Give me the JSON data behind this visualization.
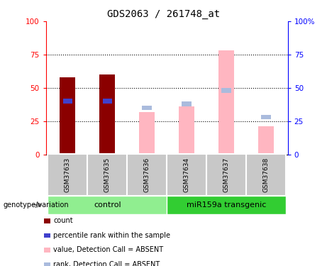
{
  "title": "GDS2063 / 261748_at",
  "samples": [
    "GSM37633",
    "GSM37635",
    "GSM37636",
    "GSM37634",
    "GSM37637",
    "GSM37638"
  ],
  "count_values": [
    58,
    60,
    0,
    0,
    0,
    0
  ],
  "rank_values": [
    40,
    40,
    0,
    0,
    0,
    0
  ],
  "absent_value": [
    0,
    0,
    32,
    36,
    78,
    21
  ],
  "absent_rank": [
    0,
    0,
    35,
    38,
    48,
    28
  ],
  "control_label": "control",
  "transgenic_label": "miR159a transgenic",
  "group_label": "genotype/variation",
  "ylim": [
    0,
    100
  ],
  "yticks": [
    0,
    25,
    50,
    75,
    100
  ],
  "color_count": "#8B0000",
  "color_rank": "#4040CC",
  "color_absent_value": "#FFB6C1",
  "color_absent_rank": "#AABBDD",
  "color_control_bg": "#90EE90",
  "color_transgenic_bg": "#32CD32",
  "color_sample_bg": "#C8C8C8",
  "bar_width": 0.4,
  "legend_items": [
    {
      "label": "count",
      "color": "#8B0000"
    },
    {
      "label": "percentile rank within the sample",
      "color": "#4040CC"
    },
    {
      "label": "value, Detection Call = ABSENT",
      "color": "#FFB6C1"
    },
    {
      "label": "rank, Detection Call = ABSENT",
      "color": "#AABBDD"
    }
  ]
}
